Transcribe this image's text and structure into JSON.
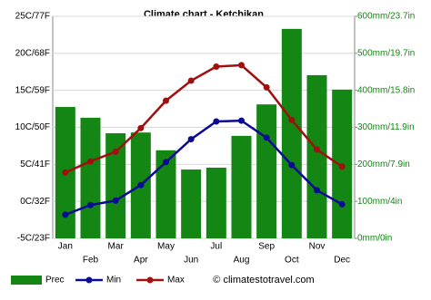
{
  "chart_data": {
    "type": "combo",
    "title": "Climate chart - Ketchikan",
    "source": "© climatestotravel.com",
    "categories": [
      "Jan",
      "Feb",
      "Mar",
      "Apr",
      "May",
      "Jun",
      "Jul",
      "Aug",
      "Sep",
      "Oct",
      "Nov",
      "Dec"
    ],
    "series": [
      {
        "name": "Prec",
        "type": "bar",
        "axis": "y2",
        "color": "#138613",
        "values": [
          355,
          326,
          284,
          286,
          238,
          186,
          191,
          277,
          362,
          566,
          441,
          402
        ]
      },
      {
        "name": "Min",
        "type": "line",
        "color": "#0a0a96",
        "values": [
          -1.8,
          -0.5,
          0.1,
          2.2,
          5.3,
          8.4,
          10.8,
          10.9,
          8.6,
          4.9,
          1.5,
          -0.4
        ]
      },
      {
        "name": "Max",
        "type": "line",
        "color": "#a01010",
        "values": [
          3.9,
          5.4,
          6.7,
          9.9,
          13.6,
          16.3,
          18.2,
          18.4,
          15.4,
          11,
          7,
          4.7
        ]
      }
    ],
    "ylim": [
      -5,
      25
    ],
    "yticks": [
      {
        "value": -5,
        "label": "-5C/23F"
      },
      {
        "value": 0,
        "label": "0C/32F"
      },
      {
        "value": 5,
        "label": "5C/41F"
      },
      {
        "value": 10,
        "label": "10C/50F"
      },
      {
        "value": 15,
        "label": "15C/59F"
      },
      {
        "value": 20,
        "label": "20C/68F"
      },
      {
        "value": 25,
        "label": "25C/77F"
      }
    ],
    "y2lim": [
      0,
      600
    ],
    "y2ticks": [
      {
        "value": 0,
        "label": "0mm/0in"
      },
      {
        "value": 100,
        "label": "100mm/4in"
      },
      {
        "value": 200,
        "label": "200mm/7.9in"
      },
      {
        "value": 300,
        "label": "300mm/11.9in"
      },
      {
        "value": 400,
        "label": "400mm/15.8in"
      },
      {
        "value": 500,
        "label": "500mm/19.7in"
      },
      {
        "value": 600,
        "label": "600mm/23.7in"
      }
    ],
    "grid": true
  }
}
